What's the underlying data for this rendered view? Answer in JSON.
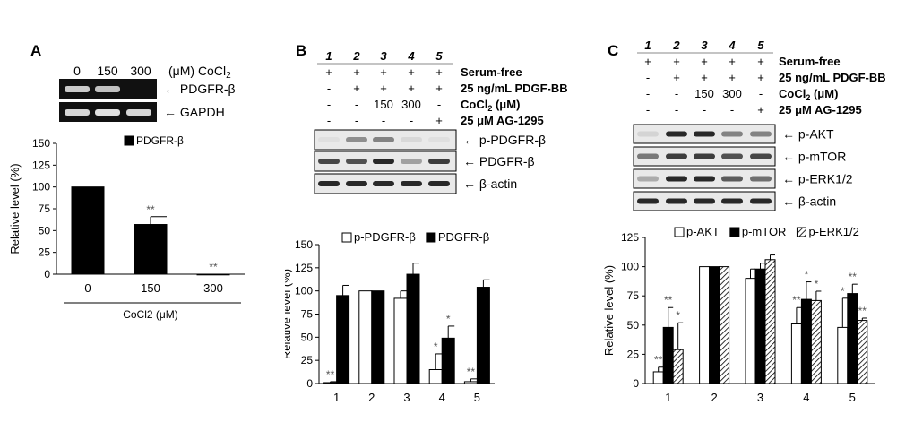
{
  "colors": {
    "bar_solid": "#000000",
    "bar_open": "#ffffff",
    "gel_bg": "#111111",
    "band": "#ececec",
    "blot_bg": "#e9e9e9",
    "blot_band": "#1e1e1e"
  },
  "panelA": {
    "letter": "A",
    "gel_header": {
      "lanes": [
        "0",
        "150",
        "300"
      ],
      "unit_prefix": "(μM) CoCl",
      "unit_sub": "2"
    },
    "gel_rows": [
      {
        "label": "PDGFR-β",
        "intensity": [
          0.85,
          0.8,
          0.0
        ]
      },
      {
        "label": "GAPDH",
        "intensity": [
          0.9,
          0.95,
          0.9
        ]
      }
    ],
    "arrow": "←"
  },
  "panelB": {
    "letter": "B",
    "lanes": [
      "1",
      "2",
      "3",
      "4",
      "5"
    ],
    "conditions": [
      {
        "label": "Serum-free",
        "marks": [
          "+",
          "+",
          "+",
          "+",
          "+"
        ]
      },
      {
        "label": "25 ng/mL PDGF-BB",
        "marks": [
          "-",
          "+",
          "+",
          "+",
          "+"
        ]
      },
      {
        "label_main": "CoCl",
        "label_sub": "2",
        "label_tail": " (μM)",
        "marks": [
          "-",
          "-",
          "150",
          "300",
          "-"
        ]
      },
      {
        "label": "25 μM AG-1295",
        "marks": [
          "-",
          "-",
          "-",
          "-",
          "+"
        ]
      }
    ],
    "blots": [
      {
        "label": "p-PDGFR-β",
        "intensity": [
          0.05,
          0.45,
          0.5,
          0.08,
          0.05
        ]
      },
      {
        "label": "PDGFR-β",
        "intensity": [
          0.8,
          0.75,
          0.95,
          0.35,
          0.85
        ]
      },
      {
        "label": "β-actin",
        "intensity": [
          0.95,
          0.95,
          0.95,
          0.95,
          0.95
        ]
      }
    ],
    "arrow": "←"
  },
  "panelC": {
    "letter": "C",
    "lanes": [
      "1",
      "2",
      "3",
      "4",
      "5"
    ],
    "conditions": [
      {
        "label": "Serum-free",
        "marks": [
          "+",
          "+",
          "+",
          "+",
          "+"
        ]
      },
      {
        "label": "25 ng/mL PDGF-BB",
        "marks": [
          "-",
          "+",
          "+",
          "+",
          "+"
        ]
      },
      {
        "label_main": "CoCl",
        "label_sub": "2",
        "label_tail": " (μM)",
        "marks": [
          "-",
          "-",
          "150",
          "300",
          "-"
        ]
      },
      {
        "label": "25 μM AG-1295",
        "marks": [
          "-",
          "-",
          "-",
          "-",
          "+"
        ]
      }
    ],
    "blots": [
      {
        "label": "p-AKT",
        "intensity": [
          0.1,
          0.95,
          0.95,
          0.5,
          0.5
        ]
      },
      {
        "label": "p-mTOR",
        "intensity": [
          0.55,
          0.85,
          0.85,
          0.75,
          0.8
        ]
      },
      {
        "label": "p-ERK1/2",
        "intensity": [
          0.3,
          0.95,
          0.95,
          0.7,
          0.6
        ]
      },
      {
        "label": "β-actin",
        "intensity": [
          0.95,
          0.95,
          0.95,
          0.95,
          0.95
        ]
      }
    ],
    "arrow": "←"
  },
  "chart_data": [
    {
      "type": "bar",
      "panel": "A",
      "categories": [
        "0",
        "150",
        "300"
      ],
      "series": [
        {
          "name": "PDGFR-β",
          "values": [
            100,
            57,
            0
          ],
          "errors": [
            0,
            9,
            0
          ],
          "sig": [
            "",
            "**",
            "**"
          ]
        }
      ],
      "xlabel": "CoCl2 (μM)",
      "ylabel": "Relative level (%)",
      "ylim": [
        0,
        150
      ],
      "yticks": [
        0,
        25,
        50,
        75,
        100,
        125,
        150
      ],
      "legend_position": "top-right",
      "grid": false
    },
    {
      "type": "bar",
      "panel": "B",
      "categories": [
        "1",
        "2",
        "3",
        "4",
        "5"
      ],
      "series": [
        {
          "name": "p-PDGFR-β",
          "style": "open",
          "values": [
            1,
            100,
            92,
            15,
            2
          ],
          "errors": [
            1,
            0,
            8,
            17,
            3
          ],
          "sig": [
            "**",
            "",
            "",
            "*",
            "**"
          ]
        },
        {
          "name": "PDGFR-β",
          "style": "solid",
          "values": [
            95,
            100,
            118,
            49,
            104
          ],
          "errors": [
            11,
            0,
            12,
            13,
            8
          ],
          "sig": [
            "",
            "",
            "",
            "*",
            ""
          ]
        }
      ],
      "ylabel": "Relative level (%)",
      "ylim": [
        0,
        150
      ],
      "yticks": [
        0,
        25,
        50,
        75,
        100,
        125,
        150
      ],
      "legend_position": "top",
      "grid": false
    },
    {
      "type": "bar",
      "panel": "C",
      "categories": [
        "1",
        "2",
        "3",
        "4",
        "5"
      ],
      "series": [
        {
          "name": "p-AKT",
          "style": "open",
          "values": [
            10,
            100,
            90,
            51,
            48
          ],
          "errors": [
            4,
            0,
            8,
            14,
            25
          ],
          "sig": [
            "**",
            "",
            "",
            "**",
            "*"
          ]
        },
        {
          "name": "p-mTOR",
          "style": "solid",
          "values": [
            48,
            100,
            98,
            72,
            77
          ],
          "errors": [
            17,
            0,
            5,
            15,
            8
          ],
          "sig": [
            "**",
            "",
            "",
            "*",
            "**"
          ]
        },
        {
          "name": "p-ERK1/2",
          "style": "hatch",
          "values": [
            29,
            100,
            106,
            71,
            54
          ],
          "errors": [
            23,
            0,
            4,
            8,
            2
          ],
          "sig": [
            "*",
            "",
            "",
            "*",
            "**"
          ]
        }
      ],
      "ylabel": "Relative level (%)",
      "ylim": [
        0,
        125
      ],
      "yticks": [
        0,
        25,
        50,
        75,
        100,
        125
      ],
      "legend_position": "top",
      "grid": false
    }
  ]
}
